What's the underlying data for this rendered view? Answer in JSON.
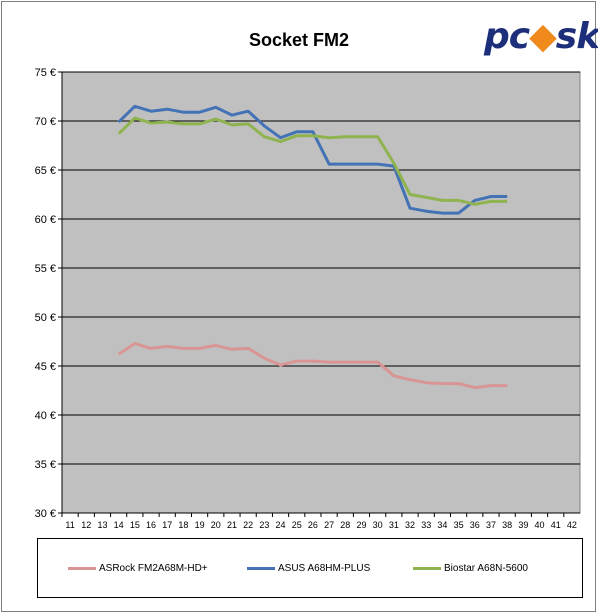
{
  "chart_data": {
    "type": "line",
    "title": "Socket FM2",
    "x": [
      11,
      12,
      13,
      14,
      15,
      16,
      17,
      18,
      19,
      20,
      21,
      22,
      23,
      24,
      25,
      26,
      27,
      28,
      29,
      30,
      31,
      32,
      33,
      34,
      35,
      36,
      37,
      38,
      39,
      40,
      41,
      42
    ],
    "xlim": [
      11,
      42
    ],
    "ylim": [
      30,
      75
    ],
    "y_ticks": [
      "30 €",
      "35 €",
      "40 €",
      "45 €",
      "50 €",
      "55 €",
      "60 €",
      "65 €",
      "70 €",
      "75 €"
    ],
    "y_tick_values": [
      30,
      35,
      40,
      45,
      50,
      55,
      60,
      65,
      70,
      75
    ],
    "grid": true,
    "legend_position": "bottom",
    "series": [
      {
        "name": "ASRock FM2A68M-HD+",
        "color": "#d99594",
        "x": [
          14,
          15,
          16,
          17,
          18,
          19,
          20,
          21,
          22,
          23,
          24,
          25,
          26,
          27,
          28,
          29,
          30,
          31,
          32,
          33,
          34,
          35,
          36,
          37,
          38
        ],
        "values": [
          46.2,
          47.3,
          46.8,
          47.0,
          46.8,
          46.8,
          47.1,
          46.7,
          46.8,
          45.8,
          45.1,
          45.5,
          45.5,
          45.4,
          45.4,
          45.4,
          45.4,
          44.0,
          43.6,
          43.3,
          43.2,
          43.2,
          42.8,
          43.0,
          43.0
        ]
      },
      {
        "name": "ASUS A68HM-PLUS",
        "color": "#4473b5",
        "x": [
          14,
          15,
          16,
          17,
          18,
          19,
          20,
          21,
          22,
          23,
          24,
          25,
          26,
          27,
          28,
          29,
          30,
          31,
          32,
          33,
          34,
          35,
          36,
          37,
          38
        ],
        "values": [
          69.9,
          71.5,
          71.0,
          71.2,
          70.9,
          70.9,
          71.4,
          70.6,
          71.0,
          69.5,
          68.3,
          68.9,
          68.9,
          65.6,
          65.6,
          65.6,
          65.6,
          65.4,
          61.1,
          60.8,
          60.6,
          60.6,
          61.9,
          62.3,
          62.3
        ]
      },
      {
        "name": "Biostar A68N-5600",
        "color": "#8fb34f",
        "x": [
          14,
          15,
          16,
          17,
          18,
          19,
          20,
          21,
          22,
          23,
          24,
          25,
          26,
          27,
          28,
          29,
          30,
          31,
          32,
          33,
          34,
          35,
          36,
          37,
          38
        ],
        "values": [
          68.7,
          70.3,
          69.8,
          69.9,
          69.7,
          69.7,
          70.2,
          69.6,
          69.7,
          68.4,
          67.9,
          68.5,
          68.5,
          68.3,
          68.4,
          68.4,
          68.4,
          65.7,
          62.5,
          62.2,
          61.9,
          61.9,
          61.5,
          61.8,
          61.8
        ]
      }
    ]
  },
  "logo": {
    "text_a": "pc",
    "text_b": "s",
    "text_c": "k"
  }
}
